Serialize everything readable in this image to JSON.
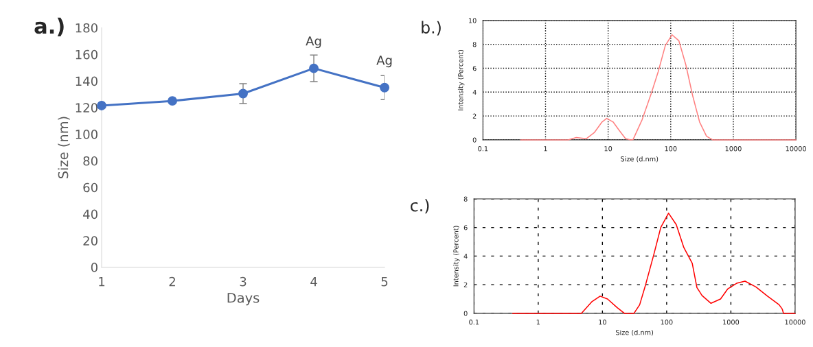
{
  "chart_data": [
    {
      "type": "line",
      "title": "a.)",
      "xlabel": "Days",
      "ylabel": "Size (nm)",
      "x": [
        1,
        2,
        3,
        4,
        5
      ],
      "xlim": [
        1,
        5
      ],
      "xticks": [
        1,
        2,
        3,
        4,
        5
      ],
      "ylim": [
        0,
        180
      ],
      "yticks": [
        0,
        20,
        40,
        60,
        80,
        100,
        120,
        140,
        160,
        180
      ],
      "grid": false,
      "marker": "circle",
      "series": [
        {
          "color": "#4472c4",
          "values": [
            121.5,
            125,
            130.5,
            149.5,
            135
          ],
          "errors": [
            null,
            null,
            7.5,
            10,
            9
          ]
        }
      ],
      "annotations": [
        {
          "text": "Ag",
          "x": 4,
          "y": 149.5
        },
        {
          "text": "Ag",
          "x": 5,
          "y": 135
        }
      ]
    },
    {
      "type": "line",
      "title": "b.)",
      "xlabel": "Size (d.nm)",
      "ylabel": "Intensity (Percent)",
      "log": "x",
      "xlim": [
        0.1,
        10000
      ],
      "xticks": [
        0.1,
        1,
        10,
        100,
        1000,
        10000
      ],
      "ylim": [
        0,
        10
      ],
      "yticks": [
        0,
        2,
        4,
        6,
        8,
        10
      ],
      "grid": true,
      "marker": "none",
      "series": [
        {
          "color": "#ff8080",
          "x": [
            0.4,
            2.3,
            3.1,
            4.5,
            6,
            8,
            9.5,
            12,
            15,
            19,
            23,
            25,
            35,
            49,
            63,
            82,
            105,
            135,
            174,
            224,
            289,
            373,
            466,
            10000
          ],
          "values": [
            0,
            0,
            0.2,
            0.1,
            0.6,
            1.5,
            1.8,
            1.5,
            0.8,
            0.1,
            0,
            0.02,
            1.7,
            3.9,
            5.7,
            7.9,
            8.8,
            8.3,
            6.3,
            3.7,
            1.5,
            0.3,
            0,
            0
          ]
        }
      ]
    },
    {
      "type": "line",
      "title": "c.)",
      "xlabel": "Size (d.nm)",
      "ylabel": "Intensity (Percent)",
      "log": "x",
      "xlim": [
        0.1,
        10000
      ],
      "xticks": [
        0.1,
        1,
        10,
        100,
        1000,
        10000
      ],
      "ylim": [
        0,
        8
      ],
      "yticks": [
        0,
        2,
        4,
        6,
        8
      ],
      "grid": true,
      "marker": "none",
      "series": [
        {
          "color": "#ff0000",
          "x": [
            0.4,
            4.7,
            6.8,
            9.2,
            12,
            17,
            22,
            31,
            38,
            47,
            63,
            81,
            107,
            141,
            185,
            250,
            296,
            355,
            490,
            690,
            890,
            1230,
            1660,
            2450,
            3720,
            5630,
            6300,
            6600,
            10000
          ],
          "values": [
            0,
            0,
            0.8,
            1.2,
            1.0,
            0.4,
            0,
            0,
            0.6,
            2.0,
            4.1,
            6.0,
            7.0,
            6.2,
            4.6,
            3.5,
            1.8,
            1.25,
            0.7,
            1.0,
            1.7,
            2.1,
            2.25,
            1.85,
            1.2,
            0.6,
            0.3,
            0,
            0
          ]
        }
      ]
    }
  ]
}
